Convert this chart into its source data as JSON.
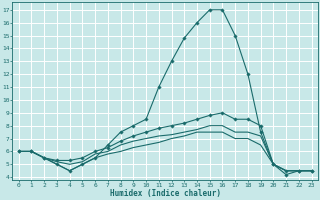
{
  "xlabel": "Humidex (Indice chaleur)",
  "xlim": [
    -0.5,
    23.5
  ],
  "ylim": [
    3.8,
    17.6
  ],
  "yticks": [
    4,
    5,
    6,
    7,
    8,
    9,
    10,
    11,
    12,
    13,
    14,
    15,
    16,
    17
  ],
  "xticks": [
    0,
    1,
    2,
    3,
    4,
    5,
    6,
    7,
    8,
    9,
    10,
    11,
    12,
    13,
    14,
    15,
    16,
    17,
    18,
    19,
    20,
    21,
    22,
    23
  ],
  "bg_color": "#c8e8e8",
  "grid_color": "#ffffff",
  "line_color": "#1a6b6b",
  "lines": [
    {
      "x": [
        0,
        1,
        2,
        3,
        4,
        5,
        6,
        7,
        8,
        9,
        10,
        11,
        12,
        13,
        14,
        15,
        16,
        17,
        18,
        19,
        20,
        21,
        22,
        23
      ],
      "y": [
        6.0,
        6.0,
        5.5,
        5.0,
        4.5,
        5.0,
        5.5,
        6.5,
        7.5,
        8.0,
        8.5,
        11.0,
        13.0,
        14.8,
        16.0,
        17.0,
        17.0,
        15.0,
        12.0,
        7.5,
        5.0,
        4.2,
        4.5,
        4.5
      ],
      "marker": "D",
      "markersize": 1.8
    },
    {
      "x": [
        0,
        1,
        2,
        3,
        4,
        5,
        6,
        7,
        8,
        9,
        10,
        11,
        12,
        13,
        14,
        15,
        16,
        17,
        18,
        19,
        20,
        21,
        22,
        23
      ],
      "y": [
        6.0,
        6.0,
        5.5,
        5.3,
        5.3,
        5.5,
        6.0,
        6.3,
        6.8,
        7.2,
        7.5,
        7.8,
        8.0,
        8.2,
        8.5,
        8.8,
        9.0,
        8.5,
        8.5,
        8.0,
        5.0,
        4.5,
        4.5,
        4.5
      ],
      "marker": "D",
      "markersize": 1.8
    },
    {
      "x": [
        0,
        1,
        2,
        3,
        4,
        5,
        6,
        7,
        8,
        9,
        10,
        11,
        12,
        13,
        14,
        15,
        16,
        17,
        18,
        19,
        20,
        21,
        22,
        23
      ],
      "y": [
        6.0,
        6.0,
        5.5,
        5.2,
        5.0,
        5.2,
        5.8,
        6.0,
        6.5,
        6.8,
        7.0,
        7.2,
        7.3,
        7.5,
        7.7,
        8.0,
        8.0,
        7.5,
        7.5,
        7.2,
        5.0,
        4.5,
        4.5,
        4.5
      ],
      "marker": null,
      "markersize": 0
    },
    {
      "x": [
        0,
        1,
        2,
        3,
        4,
        5,
        6,
        7,
        8,
        9,
        10,
        11,
        12,
        13,
        14,
        15,
        16,
        17,
        18,
        19,
        20,
        21,
        22,
        23
      ],
      "y": [
        6.0,
        6.0,
        5.5,
        5.0,
        4.5,
        5.0,
        5.5,
        5.8,
        6.0,
        6.3,
        6.5,
        6.7,
        7.0,
        7.2,
        7.5,
        7.5,
        7.5,
        7.0,
        7.0,
        6.5,
        5.0,
        4.5,
        4.5,
        4.5
      ],
      "marker": null,
      "markersize": 0
    }
  ],
  "tick_fontsize": 4.5,
  "xlabel_fontsize": 5.5,
  "xlabel_fontweight": "bold"
}
